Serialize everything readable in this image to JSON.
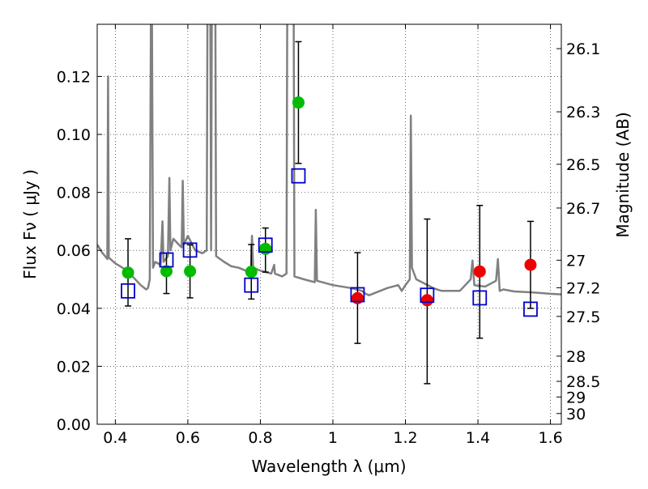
{
  "chart_data": {
    "type": "scatter",
    "xlabel": "Wavelength  λ (μm)",
    "ylabel": "Flux  Fν  ( μJy )",
    "ylabel_right": "Magnitude (AB)",
    "xlim": [
      0.35,
      1.63
    ],
    "ylim": [
      0.0,
      0.138
    ],
    "grid": true,
    "x_ticks": [
      0.4,
      0.6,
      0.8,
      1.0,
      1.2,
      1.4,
      1.6
    ],
    "x_tick_labels": [
      "0.4",
      "0.6",
      "0.8",
      "1",
      "1.2",
      "1.4",
      "1.6"
    ],
    "y_ticks": [
      0.0,
      0.02,
      0.04,
      0.06,
      0.08,
      0.1,
      0.12
    ],
    "y_tick_labels": [
      "0.00",
      "0.02",
      "0.04",
      "0.06",
      "0.08",
      "0.10",
      "0.12"
    ],
    "right_ticks": [
      {
        "label": "26.1",
        "flux": 0.1296
      },
      {
        "label": "26.3",
        "flux": 0.1078
      },
      {
        "label": "26.5",
        "flux": 0.0897
      },
      {
        "label": "26.7",
        "flux": 0.0746
      },
      {
        "label": "27",
        "flux": 0.0566
      },
      {
        "label": "27.2",
        "flux": 0.0471
      },
      {
        "label": "27.5",
        "flux": 0.0372
      },
      {
        "label": "28",
        "flux": 0.0235
      },
      {
        "label": "28.5",
        "flux": 0.0148
      },
      {
        "label": "29",
        "flux": 0.0094
      },
      {
        "label": "30",
        "flux": 0.0037
      }
    ],
    "series": [
      {
        "name": "observed optical (green)",
        "color": "#00bb00",
        "marker": "circle",
        "points": [
          {
            "x": 0.435,
            "y": 0.0523,
            "ylo": 0.0408,
            "yhi": 0.064
          },
          {
            "x": 0.541,
            "y": 0.0528,
            "ylo": 0.0451,
            "yhi": 0.059
          },
          {
            "x": 0.606,
            "y": 0.0528,
            "ylo": 0.0436,
            "yhi": 0.0619
          },
          {
            "x": 0.775,
            "y": 0.0526,
            "ylo": 0.0432,
            "yhi": 0.062
          },
          {
            "x": 0.814,
            "y": 0.0605,
            "ylo": 0.0525,
            "yhi": 0.0677
          },
          {
            "x": 0.905,
            "y": 0.111,
            "ylo": 0.09,
            "yhi": 0.132
          }
        ]
      },
      {
        "name": "observed near-IR (red)",
        "color": "#ee0000",
        "marker": "circle",
        "points": [
          {
            "x": 1.068,
            "y": 0.0435,
            "ylo": 0.0279,
            "yhi": 0.0592
          },
          {
            "x": 1.26,
            "y": 0.0428,
            "ylo": 0.014,
            "yhi": 0.0708
          },
          {
            "x": 1.405,
            "y": 0.0527,
            "ylo": 0.0297,
            "yhi": 0.0755
          },
          {
            "x": 1.545,
            "y": 0.055,
            "ylo": 0.04,
            "yhi": 0.07
          }
        ]
      },
      {
        "name": "model photometry (blue squares)",
        "color": "#0000cc",
        "marker": "square",
        "points": [
          {
            "x": 0.435,
            "y": 0.046
          },
          {
            "x": 0.541,
            "y": 0.0567
          },
          {
            "x": 0.606,
            "y": 0.0601
          },
          {
            "x": 0.775,
            "y": 0.048
          },
          {
            "x": 0.814,
            "y": 0.0618
          },
          {
            "x": 0.905,
            "y": 0.0857
          },
          {
            "x": 1.068,
            "y": 0.0447
          },
          {
            "x": 1.26,
            "y": 0.0445
          },
          {
            "x": 1.405,
            "y": 0.0436
          },
          {
            "x": 1.545,
            "y": 0.0397
          }
        ]
      }
    ],
    "model_spectrum": {
      "name": "model SED",
      "color": "#808080",
      "points": [
        [
          0.35,
          0.062
        ],
        [
          0.365,
          0.059
        ],
        [
          0.372,
          0.058
        ],
        [
          0.378,
          0.057
        ],
        [
          0.38,
          0.12
        ],
        [
          0.382,
          0.0575
        ],
        [
          0.4,
          0.0555
        ],
        [
          0.42,
          0.054
        ],
        [
          0.44,
          0.052
        ],
        [
          0.47,
          0.048
        ],
        [
          0.485,
          0.0465
        ],
        [
          0.49,
          0.047
        ],
        [
          0.495,
          0.05
        ],
        [
          0.498,
          0.14
        ],
        [
          0.501,
          0.14
        ],
        [
          0.504,
          0.054
        ],
        [
          0.51,
          0.056
        ],
        [
          0.525,
          0.055
        ],
        [
          0.53,
          0.07
        ],
        [
          0.533,
          0.056
        ],
        [
          0.545,
          0.058
        ],
        [
          0.549,
          0.085
        ],
        [
          0.552,
          0.06
        ],
        [
          0.56,
          0.064
        ],
        [
          0.575,
          0.062
        ],
        [
          0.583,
          0.061
        ],
        [
          0.586,
          0.084
        ],
        [
          0.589,
          0.062
        ],
        [
          0.6,
          0.065
        ],
        [
          0.62,
          0.06
        ],
        [
          0.64,
          0.059
        ],
        [
          0.652,
          0.06
        ],
        [
          0.654,
          0.14
        ],
        [
          0.662,
          0.14
        ],
        [
          0.664,
          0.06
        ],
        [
          0.666,
          0.14
        ],
        [
          0.676,
          0.14
        ],
        [
          0.678,
          0.058
        ],
        [
          0.7,
          0.056
        ],
        [
          0.72,
          0.0545
        ],
        [
          0.74,
          0.054
        ],
        [
          0.76,
          0.053
        ],
        [
          0.774,
          0.0535
        ],
        [
          0.777,
          0.065
        ],
        [
          0.78,
          0.054
        ],
        [
          0.8,
          0.053
        ],
        [
          0.83,
          0.052
        ],
        [
          0.838,
          0.055
        ],
        [
          0.84,
          0.052
        ],
        [
          0.86,
          0.051
        ],
        [
          0.872,
          0.052
        ],
        [
          0.874,
          0.14
        ],
        [
          0.892,
          0.14
        ],
        [
          0.894,
          0.051
        ],
        [
          0.92,
          0.05
        ],
        [
          0.95,
          0.049
        ],
        [
          0.953,
          0.074
        ],
        [
          0.956,
          0.0495
        ],
        [
          1.0,
          0.048
        ],
        [
          1.05,
          0.047
        ],
        [
          1.08,
          0.046
        ],
        [
          1.09,
          0.045
        ],
        [
          1.1,
          0.0445
        ],
        [
          1.15,
          0.047
        ],
        [
          1.18,
          0.048
        ],
        [
          1.19,
          0.046
        ],
        [
          1.2,
          0.048
        ],
        [
          1.212,
          0.05
        ],
        [
          1.215,
          0.1065
        ],
        [
          1.218,
          0.054
        ],
        [
          1.23,
          0.05
        ],
        [
          1.28,
          0.0468
        ],
        [
          1.3,
          0.046
        ],
        [
          1.35,
          0.046
        ],
        [
          1.38,
          0.05
        ],
        [
          1.385,
          0.0565
        ],
        [
          1.39,
          0.048
        ],
        [
          1.42,
          0.0475
        ],
        [
          1.45,
          0.0495
        ],
        [
          1.455,
          0.057
        ],
        [
          1.46,
          0.046
        ],
        [
          1.47,
          0.0465
        ],
        [
          1.5,
          0.0458
        ],
        [
          1.55,
          0.0455
        ],
        [
          1.6,
          0.045
        ],
        [
          1.63,
          0.0448
        ]
      ]
    }
  }
}
